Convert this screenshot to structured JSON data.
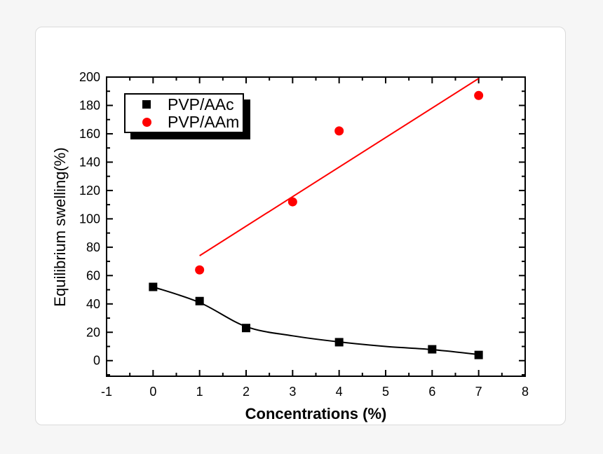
{
  "page": {
    "background_color": "#f6f6f6"
  },
  "card": {
    "background_color": "#ffffff",
    "border_color": "#dadada"
  },
  "chart_data": {
    "type": "scatter",
    "title": "",
    "xlabel": "Concentrations (%)",
    "ylabel": "Equilibrium swelling(%)",
    "xlim": [
      -1,
      8
    ],
    "ylim": [
      -11,
      200
    ],
    "x_major_ticks": [
      -1,
      0,
      1,
      2,
      3,
      4,
      5,
      6,
      7,
      8
    ],
    "x_minor_ticks": [
      -0.5,
      0.5,
      1.5,
      2.5,
      3.5,
      4.5,
      5.5,
      6.5,
      7.5
    ],
    "y_major_ticks": [
      0,
      20,
      40,
      60,
      80,
      100,
      120,
      140,
      160,
      180,
      200
    ],
    "y_minor_ticks": [
      -10,
      10,
      30,
      50,
      70,
      90,
      110,
      130,
      150,
      170,
      190
    ],
    "grid": false,
    "frame_color": "#000000",
    "legend": {
      "position": "top-left-inside",
      "entries": [
        "PVP/AAc",
        "PVP/AAm"
      ]
    },
    "series": [
      {
        "name": "PVP/AAc",
        "marker": "square",
        "color": "#000000",
        "x": [
          0,
          1,
          2,
          4,
          6,
          7
        ],
        "y": [
          52,
          42,
          23,
          13,
          8,
          4
        ],
        "fit_curve": {
          "type": "exponential-decay",
          "color": "#000000",
          "points_x": [
            0,
            1,
            2,
            3,
            4,
            5,
            6,
            7
          ],
          "points_y": [
            52,
            41,
            24,
            17.5,
            13.2,
            10,
            7.8,
            4.3
          ]
        }
      },
      {
        "name": "PVP/AAm",
        "marker": "circle",
        "color": "#ff0000",
        "x": [
          1,
          3,
          4,
          7
        ],
        "y": [
          64,
          112,
          162,
          187
        ],
        "fit_line": {
          "type": "linear",
          "color": "#ff0000",
          "x1": 1,
          "y1": 74,
          "x2": 7,
          "y2": 199
        }
      }
    ]
  }
}
